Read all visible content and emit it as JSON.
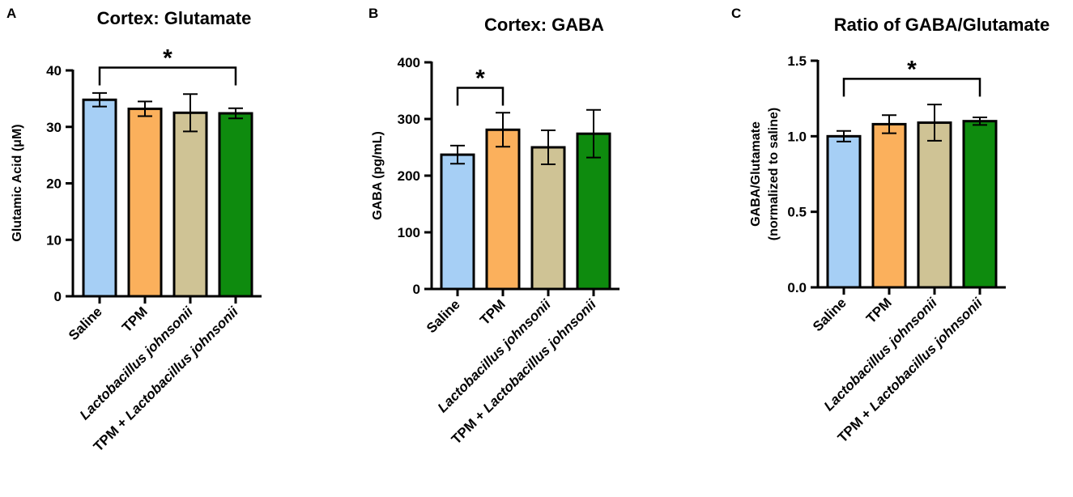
{
  "chart_data": [
    {
      "type": "bar",
      "panel": "A",
      "title": "Cortex: Glutamate",
      "ylabel": "Glutamic Acid (μM)",
      "ylim": [
        0,
        40
      ],
      "yticks": [
        0,
        10,
        20,
        30,
        40
      ],
      "ytick_labels": [
        "0",
        "10",
        "20",
        "30",
        "40"
      ],
      "categories": [
        "Saline",
        "TPM",
        "Lactobacillus johnsonii",
        "TPM + Lactobacillus johnsonii"
      ],
      "category_parts": [
        [
          {
            "text": "Saline",
            "italic": false
          }
        ],
        [
          {
            "text": "TPM",
            "italic": false
          }
        ],
        [
          {
            "text": "Lactobacillus johnsonii",
            "italic": true
          }
        ],
        [
          {
            "text": "TPM + ",
            "italic": false
          },
          {
            "text": "Lactobacillus johnsonii",
            "italic": true
          }
        ]
      ],
      "values": [
        34.8,
        33.2,
        32.5,
        32.4
      ],
      "errors": [
        1.2,
        1.3,
        3.3,
        0.9
      ],
      "colors": [
        "#a6cff5",
        "#fbb05c",
        "#cfc395",
        "#0e8b0e"
      ],
      "significance": [
        {
          "from": 0,
          "to": 3,
          "label": "*",
          "y": 40.5
        }
      ]
    },
    {
      "type": "bar",
      "panel": "B",
      "title": "Cortex: GABA",
      "ylabel": "GABA (pg/mL)",
      "ylim": [
        0,
        400
      ],
      "yticks": [
        0,
        100,
        200,
        300,
        400
      ],
      "ytick_labels": [
        "0",
        "100",
        "200",
        "300",
        "400"
      ],
      "categories": [
        "Saline",
        "TPM",
        "Lactobacillus johnsonii",
        "TPM + Lactobacillus johnsonii"
      ],
      "category_parts": [
        [
          {
            "text": "Saline",
            "italic": false
          }
        ],
        [
          {
            "text": "TPM",
            "italic": false
          }
        ],
        [
          {
            "text": "Lactobacillus johnsonii",
            "italic": true
          }
        ],
        [
          {
            "text": "TPM + ",
            "italic": false
          },
          {
            "text": "Lactobacillus johnsonii",
            "italic": true
          }
        ]
      ],
      "values": [
        237,
        281,
        250,
        274
      ],
      "errors": [
        16,
        30,
        30,
        42
      ],
      "colors": [
        "#a6cff5",
        "#fbb05c",
        "#cfc395",
        "#0e8b0e"
      ],
      "significance": [
        {
          "from": 0,
          "to": 1,
          "label": "*",
          "y": 355
        }
      ]
    },
    {
      "type": "bar",
      "panel": "C",
      "title": "Ratio of GABA/Glutamate",
      "ylabel": "GABA/Glutamate",
      "ylabel2": "(normalized to saline)",
      "ylim": [
        0,
        1.5
      ],
      "yticks": [
        0,
        0.5,
        1.0,
        1.5
      ],
      "ytick_labels": [
        "0.0",
        "0.5",
        "1.0",
        "1.5"
      ],
      "categories": [
        "Saline",
        "TPM",
        "Lactobacillus johnsonii",
        "TPM + Lactobacillus johnsonii"
      ],
      "category_parts": [
        [
          {
            "text": "Saline",
            "italic": false
          }
        ],
        [
          {
            "text": "TPM",
            "italic": false
          }
        ],
        [
          {
            "text": "Lactobacillus johnsonii",
            "italic": true
          }
        ],
        [
          {
            "text": "TPM + ",
            "italic": false
          },
          {
            "text": "Lactobacillus johnsonii",
            "italic": true
          }
        ]
      ],
      "values": [
        1.0,
        1.08,
        1.09,
        1.1
      ],
      "errors": [
        0.035,
        0.06,
        0.12,
        0.025
      ],
      "colors": [
        "#a6cff5",
        "#fbb05c",
        "#cfc395",
        "#0e8b0e"
      ],
      "significance": [
        {
          "from": 0,
          "to": 3,
          "label": "*",
          "y": 1.38
        }
      ]
    }
  ]
}
